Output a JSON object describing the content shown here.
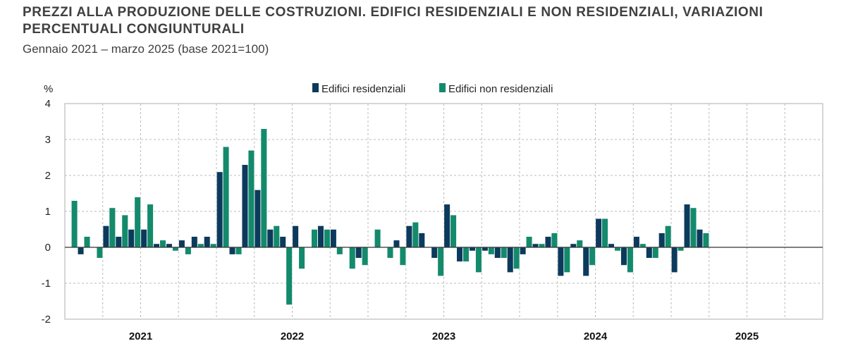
{
  "chart_data": {
    "type": "bar",
    "title": "PREZZI ALLA PRODUZIONE DELLE COSTRUZIONI. EDIFICI RESIDENZIALI E NON RESIDENZIALI, VARIAZIONI PERCENTUALI CONGIUNTURALI",
    "subtitle": "Gennaio 2021 – marzo 2025 (base 2021=100)",
    "ylabel": "%",
    "ylim": [
      -2,
      4
    ],
    "yticks": [
      "4",
      "3",
      "2",
      "1",
      "0",
      "-1",
      "-2"
    ],
    "x_tick_labels": [
      "2021",
      "2022",
      "2023",
      "2024",
      "2025"
    ],
    "months_per_year": 12,
    "grid": true,
    "legend": "top-center",
    "colors": {
      "residenziali": "#0c3a5c",
      "non_residenziali": "#138a6c"
    },
    "series": [
      {
        "name": "Edifici residenziali",
        "values": [
          0,
          -0.2,
          0,
          0.6,
          0.3,
          0.5,
          0.5,
          0.1,
          0.1,
          0.2,
          0.3,
          0.3,
          2.1,
          -0.2,
          2.3,
          1.6,
          0.5,
          0.3,
          0.6,
          0,
          0.6,
          0.5,
          0,
          -0.3,
          0,
          0,
          0.2,
          0.6,
          0.4,
          -0.3,
          1.2,
          -0.4,
          -0.1,
          -0.1,
          -0.3,
          -0.7,
          -0.2,
          0.1,
          0.3,
          -0.8,
          0.1,
          -0.8,
          0.8,
          0.1,
          -0.5,
          0.3,
          -0.3,
          0.4,
          -0.7,
          1.2,
          0.5
        ]
      },
      {
        "name": "Edifici non residenziali",
        "values": [
          1.3,
          0.3,
          -0.3,
          1.1,
          0.9,
          1.4,
          1.2,
          0.2,
          -0.1,
          -0.2,
          0.1,
          0.1,
          2.8,
          -0.2,
          2.7,
          3.3,
          0.6,
          -1.6,
          -0.6,
          0.5,
          0.5,
          -0.2,
          -0.6,
          -0.5,
          0.5,
          -0.3,
          -0.5,
          0.7,
          0,
          -0.8,
          0.9,
          -0.4,
          -0.7,
          -0.2,
          -0.3,
          -0.6,
          0.3,
          0.1,
          0.4,
          -0.7,
          0.2,
          -0.5,
          0.8,
          -0.1,
          -0.7,
          0.1,
          -0.3,
          0.6,
          -0.1,
          1.1,
          0.4
        ]
      }
    ]
  }
}
